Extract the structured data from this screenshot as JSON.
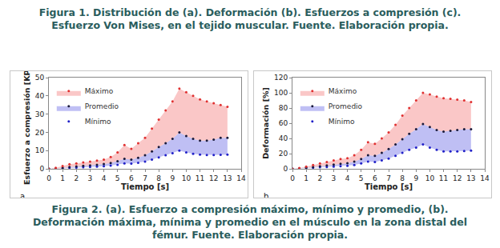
{
  "captions": {
    "top": [
      "Figura 1. Distribución de (a). Deformación (b). Esfuerzos a compresión (c).",
      "Esfuerzo Von Mises, en el tejido muscular. Fuente. Elaboración propia."
    ],
    "bottom": [
      "Figura 2. (a). Esfuerzo a compresión máximo, mínimo y promedio, (b).",
      "Deformación máxima, mínima y promedio en el músculo en la zona distal del",
      "fémur. Fuente. Elaboración propia."
    ]
  },
  "chart_data": [
    {
      "type": "scatter",
      "x_label": "Tiempo [s]",
      "y_label": "Esfuerzo a compresión [KPa]",
      "annotations": [
        {
          "text": "a."
        }
      ],
      "x": [
        0,
        0.5,
        1,
        1.5,
        2,
        2.5,
        3,
        3.5,
        4,
        4.5,
        5,
        5.5,
        6,
        6.5,
        7,
        7.5,
        8,
        8.5,
        9,
        9.5,
        10,
        10.5,
        11,
        11.5,
        12,
        12.5,
        13
      ],
      "series": [
        {
          "name": "Máximo",
          "color": "#e03030",
          "marker": "circle",
          "values": [
            0,
            0.5,
            1.5,
            2.5,
            3,
            3.5,
            4,
            4.5,
            5,
            6.5,
            9,
            13,
            11,
            14,
            17,
            22,
            27,
            32,
            37,
            44,
            42,
            40,
            38,
            37,
            36,
            35,
            34
          ]
        },
        {
          "name": "Promedio",
          "color": "#1a1a3a",
          "marker": "circle",
          "values": [
            0,
            0.2,
            0.6,
            1,
            1.3,
            1.6,
            1.9,
            2.2,
            2.6,
            3.2,
            4.2,
            5.5,
            5,
            6,
            7.5,
            9.5,
            12,
            14,
            16.5,
            20,
            18,
            16.5,
            15.5,
            15.5,
            16,
            17,
            17
          ]
        },
        {
          "name": "Mínimo",
          "color": "#2020c8",
          "marker": "circle",
          "values": [
            0,
            0.1,
            0.3,
            0.5,
            0.7,
            0.9,
            1,
            1.2,
            1.4,
            1.7,
            2.2,
            3,
            2.8,
            3.3,
            4,
            5,
            6.2,
            7.5,
            8.5,
            10,
            9,
            8.2,
            7.8,
            7.6,
            7.6,
            7.7,
            7.8
          ]
        }
      ],
      "xlim": [
        0,
        14
      ],
      "xticks": [
        0,
        1,
        2,
        3,
        4,
        5,
        6,
        7,
        8,
        9,
        10,
        11,
        12,
        13,
        14
      ],
      "ylim": [
        0,
        50
      ],
      "yticks": [
        0,
        10,
        20,
        30,
        40,
        50
      ],
      "grid": false,
      "legend": "upper left"
    },
    {
      "type": "scatter",
      "x_label": "Tiempo [s]",
      "y_label": "Deformación [%]",
      "annotations": [
        {
          "text": "b."
        }
      ],
      "x": [
        0,
        0.5,
        1,
        1.5,
        2,
        2.5,
        3,
        3.5,
        4,
        4.5,
        5,
        5.5,
        6,
        6.5,
        7,
        7.5,
        8,
        8.5,
        9,
        9.5,
        10,
        10.5,
        11,
        11.5,
        12,
        12.5,
        13
      ],
      "series": [
        {
          "name": "Máximo",
          "color": "#e03030",
          "marker": "circle",
          "values": [
            0,
            1,
            3,
            5,
            7,
            9,
            11,
            13,
            14,
            18,
            25,
            35,
            33,
            40,
            48,
            58,
            70,
            80,
            90,
            100,
            98,
            95,
            93,
            92,
            91,
            90,
            88
          ]
        },
        {
          "name": "Promedio",
          "color": "#1a1a3a",
          "marker": "circle",
          "values": [
            0,
            0.5,
            1.5,
            2.5,
            3.5,
            4.5,
            5.5,
            6.5,
            7.5,
            9.5,
            13,
            18,
            17,
            21,
            26,
            32,
            39,
            46,
            52,
            59,
            55,
            51,
            49,
            50,
            51,
            52,
            52
          ]
        },
        {
          "name": "Mínimo",
          "color": "#2020c8",
          "marker": "circle",
          "values": [
            0,
            0.3,
            1,
            1.5,
            2,
            2.5,
            3,
            3.5,
            4,
            5,
            7,
            9.5,
            9,
            11,
            13.5,
            17,
            21,
            25,
            28,
            32,
            28,
            25,
            23,
            23,
            23,
            23.5,
            24
          ]
        }
      ],
      "xlim": [
        0,
        14
      ],
      "xticks": [
        0,
        1,
        2,
        3,
        4,
        5,
        6,
        7,
        8,
        9,
        10,
        11,
        12,
        13,
        14
      ],
      "ylim": [
        0,
        120
      ],
      "yticks": [
        0,
        20,
        40,
        60,
        80,
        100,
        120
      ],
      "grid": false,
      "legend": "upper left"
    }
  ]
}
